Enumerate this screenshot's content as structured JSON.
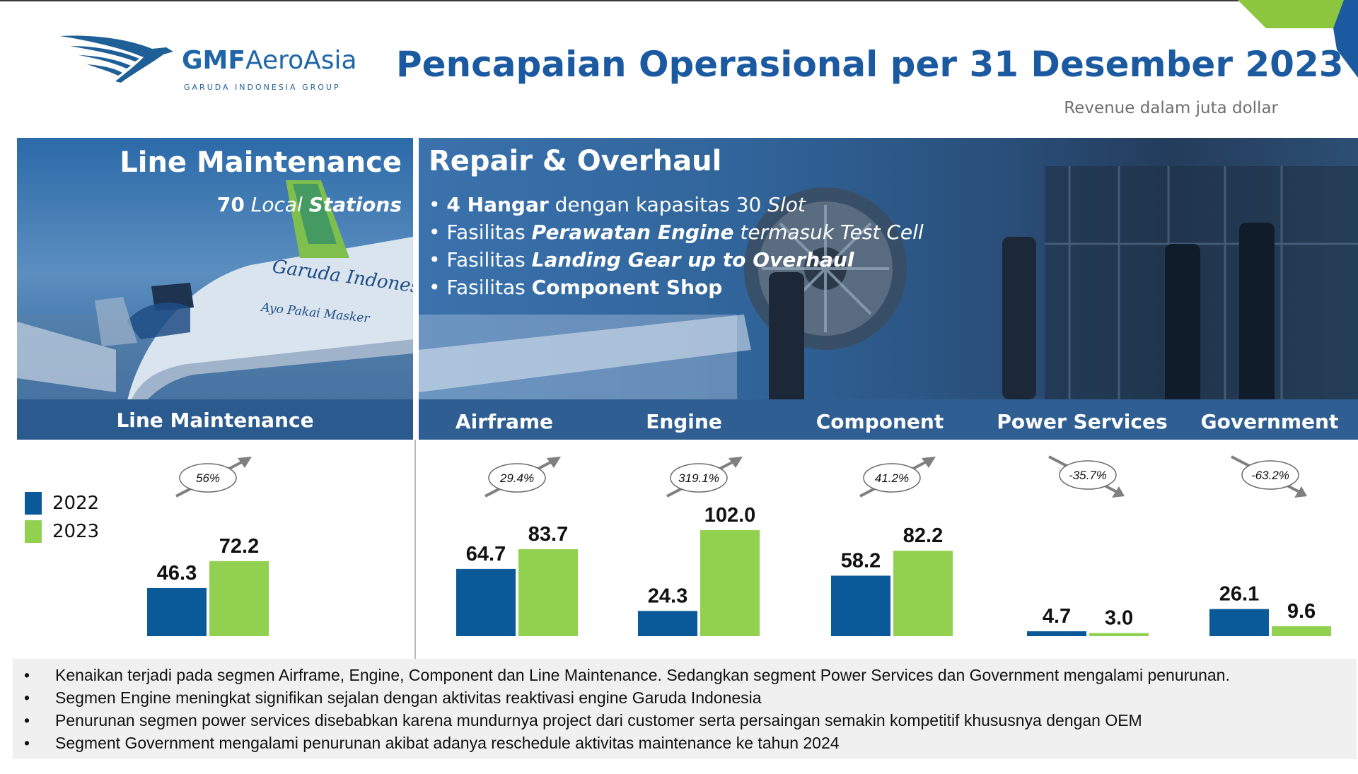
{
  "header": {
    "logo_name_bold": "GMF",
    "logo_name_rest": "AeroAsia",
    "logo_sub": "GARUDA INDONESIA GROUP",
    "title": "Pencapaian Operasional per 31 Desember 2023",
    "subtitle": "Revenue dalam juta dollar"
  },
  "line_maintenance_panel": {
    "heading": "Line Maintenance",
    "stations_number": "70",
    "stations_text_1": "Local",
    "stations_text_2": "Stations",
    "photo_text_1": "Garuda Indonesia",
    "photo_text_2": "Ayo Pakai Masker"
  },
  "repair_panel": {
    "heading": "Repair & Overhaul",
    "bullets": [
      {
        "pre": "",
        "bold": "4 Hangar",
        "mid": " dengan kapasitas 30 ",
        "ital": "Slot",
        "post": ""
      },
      {
        "pre": "Fasilitas ",
        "bold": "Perawatan Engine",
        "mid": " termasuk Test Cell",
        "ital": "",
        "post": ""
      },
      {
        "pre": "Fasilitas ",
        "bold": "Landing Gear up to Overhaul",
        "mid": "",
        "ital": "",
        "post": ""
      },
      {
        "pre": "Fasilitas ",
        "bold": "Component Shop",
        "mid": "",
        "ital": "",
        "post": ""
      }
    ]
  },
  "segment_labels": [
    "Line Maintenance",
    "Airframe",
    "Engine",
    "Component",
    "Power Services",
    "Government"
  ],
  "colors": {
    "y2022": "#0a5a9a",
    "y2023": "#92d050",
    "accent_blue": "#1b5aa0",
    "arrow": "#7f7f7f"
  },
  "chart_data": {
    "type": "bar",
    "categories": [
      "Line Maintenance",
      "Airframe",
      "Engine",
      "Component",
      "Power Services",
      "Government"
    ],
    "series": [
      {
        "name": "2022",
        "values": [
          46.3,
          64.7,
          24.3,
          58.2,
          4.7,
          26.1
        ]
      },
      {
        "name": "2023",
        "values": [
          72.2,
          83.7,
          102.0,
          82.2,
          3.0,
          9.6
        ]
      }
    ],
    "value_labels": {
      "2022": [
        "46.3",
        "64.7",
        "24.3",
        "58.2",
        "4.7",
        "26.1"
      ],
      "2023": [
        "72.2",
        "83.7",
        "102.0",
        "82.2",
        "3.0",
        "9.6"
      ]
    },
    "growth_labels": [
      "56%",
      "29.4%",
      "319.1%",
      "41.2%",
      "-35.7%",
      "-63.2%"
    ],
    "growth_direction": [
      "up",
      "up",
      "up",
      "up",
      "down",
      "down"
    ],
    "legend": [
      "2022",
      "2023"
    ],
    "legend_placement": "left",
    "grid": false
  },
  "notes": [
    "Kenaikan terjadi pada segmen Airframe, Engine, Component dan Line Maintenance. Sedangkan segment Power Services dan Government mengalami penurunan.",
    "Segmen Engine meningkat signifikan sejalan dengan aktivitas reaktivasi engine Garuda Indonesia",
    "Penurunan segmen power services disebabkan karena mundurnya project dari customer serta persaingan semakin kompetitif khususnya dengan OEM",
    "Segment Government mengalami penurunan akibat adanya reschedule aktivitas maintenance ke tahun 2024"
  ],
  "bullet_symbol": "•"
}
